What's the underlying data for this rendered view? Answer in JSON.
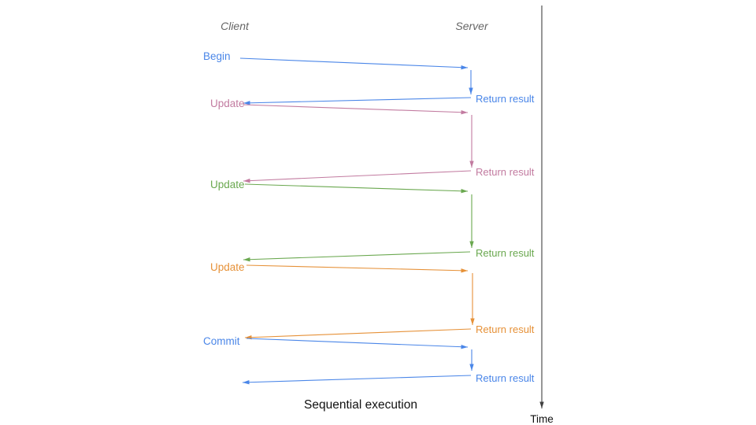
{
  "diagram": {
    "client_header": "Client",
    "server_header": "Server",
    "caption": "Sequential execution",
    "time_axis_label": "Time",
    "header_color": "#666666",
    "axis_color": "#404040",
    "caption_color": "#111111",
    "operations": [
      {
        "label": "Begin",
        "return_label": "Return result",
        "color": "#4a86e8"
      },
      {
        "label": "Update",
        "return_label": "Return result",
        "color": "#c27ba0"
      },
      {
        "label": "Update",
        "return_label": "Return result",
        "color": "#6aa84f"
      },
      {
        "label": "Update",
        "return_label": "Return result",
        "color": "#e69138"
      },
      {
        "label": "Commit",
        "return_label": "Return result",
        "color": "#4a86e8"
      }
    ]
  }
}
